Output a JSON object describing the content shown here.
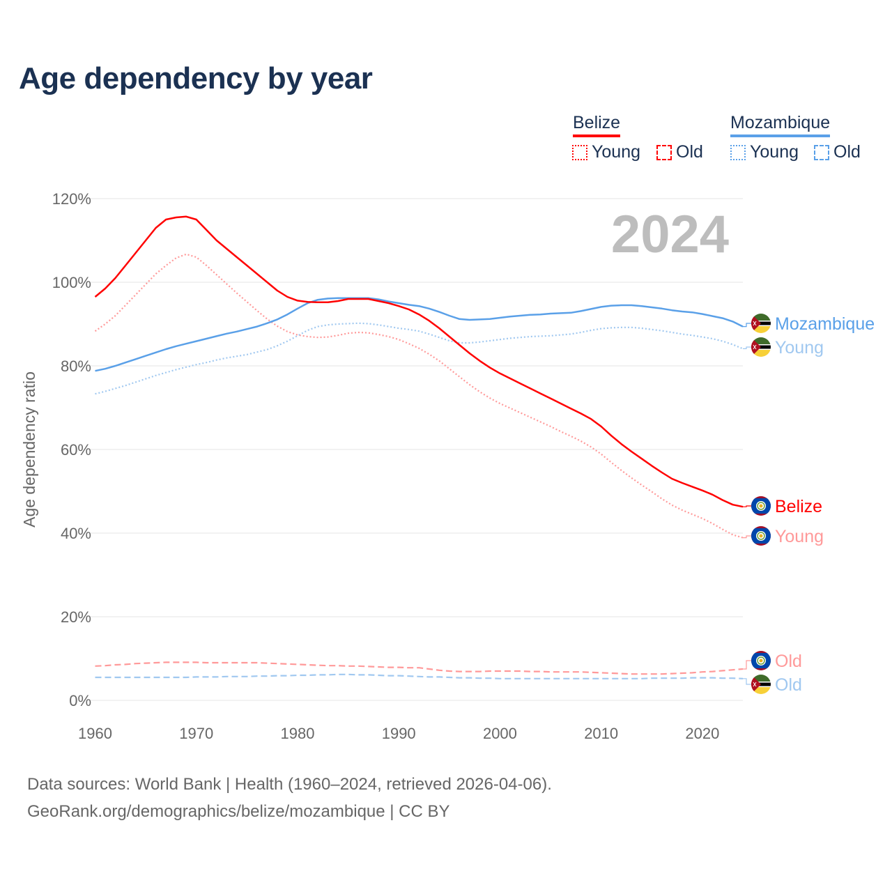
{
  "title": "Age dependency by year",
  "legend": {
    "groups": [
      {
        "name": "Belize",
        "color": "#ff0000",
        "light": "#ff9999",
        "items": [
          "Young",
          "Old"
        ]
      },
      {
        "name": "Mozambique",
        "color": "#5aa0e8",
        "light": "#a0c8f0",
        "items": [
          "Young",
          "Old"
        ]
      }
    ]
  },
  "footer": {
    "line1": "Data sources: World Bank | Health (1960–2024, retrieved 2026-04-06).",
    "line2": "GeoRank.org/demographics/belize/mozambique | CC BY"
  },
  "chart_data": {
    "type": "line",
    "title": "Age dependency by year",
    "year_label": "2024",
    "xlabel": "",
    "ylabel": "Age dependency ratio",
    "xlim": [
      1960,
      2024
    ],
    "ylim": [
      0,
      120
    ],
    "x_ticks": [
      "1960",
      "1970",
      "1980",
      "1990",
      "2000",
      "2010",
      "2020"
    ],
    "y_ticks": [
      "0%",
      "20%",
      "40%",
      "60%",
      "80%",
      "100%",
      "120%"
    ],
    "grid": true,
    "x_start": 1960,
    "series": [
      {
        "name": "Belize",
        "label": "Belize",
        "country": "Belize",
        "style": "solid",
        "color": "#ff0000",
        "values": [
          96.5,
          98.5,
          101,
          104,
          107,
          110,
          113,
          115,
          115.5,
          115.7,
          115,
          112.5,
          110,
          108,
          106,
          104,
          102,
          100,
          98,
          96.5,
          95.6,
          95.3,
          95.2,
          95.2,
          95.5,
          96,
          96,
          96,
          95.5,
          95,
          94.3,
          93.5,
          92.3,
          90.8,
          89,
          87,
          85,
          83,
          81.2,
          79.6,
          78.2,
          77,
          75.8,
          74.6,
          73.4,
          72.2,
          71,
          69.8,
          68.6,
          67.3,
          65.5,
          63.3,
          61.3,
          59.5,
          57.8,
          56.1,
          54.5,
          53,
          52,
          51.1,
          50.2,
          49.2,
          47.9,
          46.8,
          46.3
        ]
      },
      {
        "name": "Belize Young",
        "label": "Young",
        "country": "Belize",
        "style": "dotted",
        "color": "#ff9999",
        "values": [
          88.3,
          90,
          92,
          94.5,
          97,
          99.5,
          102,
          104,
          105.8,
          106.7,
          106,
          104,
          101.8,
          99.6,
          97.4,
          95.3,
          93.2,
          91.2,
          89.5,
          88.2,
          87.4,
          87,
          86.8,
          86.9,
          87.3,
          87.8,
          88,
          87.9,
          87.5,
          87,
          86.3,
          85.3,
          84.2,
          82.8,
          81.2,
          79.3,
          77.4,
          75.5,
          73.8,
          72.3,
          71,
          69.9,
          68.8,
          67.7,
          66.6,
          65.5,
          64.3,
          63.2,
          62,
          60.6,
          58.9,
          56.9,
          55,
          53.2,
          51.5,
          49.9,
          48.2,
          46.7,
          45.5,
          44.5,
          43.5,
          42.3,
          40.9,
          39.6,
          38.9
        ]
      },
      {
        "name": "Belize Old",
        "label": "Old",
        "country": "Belize",
        "style": "dashed",
        "color": "#ff9999",
        "values": [
          8.2,
          8.3,
          8.5,
          8.6,
          8.8,
          8.9,
          9.0,
          9.1,
          9.1,
          9.1,
          9.1,
          9.0,
          9.0,
          9.0,
          9.0,
          9.0,
          9.0,
          8.9,
          8.8,
          8.7,
          8.6,
          8.5,
          8.4,
          8.3,
          8.3,
          8.2,
          8.2,
          8.1,
          8.0,
          7.9,
          7.9,
          7.8,
          7.8,
          7.5,
          7.2,
          7.0,
          6.9,
          6.9,
          6.9,
          7.0,
          7.0,
          7.0,
          7.0,
          6.9,
          6.9,
          6.8,
          6.8,
          6.8,
          6.8,
          6.7,
          6.6,
          6.5,
          6.4,
          6.3,
          6.3,
          6.3,
          6.3,
          6.4,
          6.5,
          6.6,
          6.8,
          6.9,
          7.1,
          7.3,
          7.5
        ]
      },
      {
        "name": "Mozambique",
        "label": "Mozambique",
        "country": "Mozambique",
        "style": "solid",
        "color": "#5aa0e8",
        "values": [
          78.8,
          79.3,
          80,
          80.8,
          81.6,
          82.4,
          83.2,
          84,
          84.7,
          85.3,
          85.9,
          86.5,
          87.1,
          87.7,
          88.2,
          88.8,
          89.4,
          90.2,
          91.1,
          92.3,
          93.7,
          95,
          95.8,
          96.1,
          96.2,
          96.2,
          96.2,
          96.2,
          95.9,
          95.4,
          95,
          94.6,
          94.3,
          93.7,
          92.9,
          92,
          91.2,
          91,
          91.1,
          91.2,
          91.5,
          91.8,
          92,
          92.2,
          92.3,
          92.5,
          92.6,
          92.7,
          93.1,
          93.6,
          94.1,
          94.4,
          94.5,
          94.5,
          94.3,
          94,
          93.7,
          93.3,
          93,
          92.8,
          92.4,
          91.9,
          91.4,
          90.6,
          89.4
        ]
      },
      {
        "name": "Mozambique Young",
        "label": "Young",
        "country": "Mozambique",
        "style": "dotted",
        "color": "#a0c8f0",
        "values": [
          73.3,
          73.9,
          74.6,
          75.3,
          76.1,
          76.9,
          77.7,
          78.4,
          79.1,
          79.7,
          80.3,
          80.8,
          81.4,
          81.9,
          82.3,
          82.7,
          83.3,
          83.9,
          84.8,
          85.9,
          87.2,
          88.5,
          89.4,
          89.8,
          90,
          90.1,
          90.2,
          90.1,
          89.8,
          89.4,
          89,
          88.7,
          88.3,
          87.6,
          86.8,
          86,
          85.5,
          85.5,
          85.7,
          86,
          86.3,
          86.6,
          86.8,
          87,
          87.1,
          87.2,
          87.4,
          87.6,
          88,
          88.5,
          88.9,
          89.1,
          89.2,
          89.2,
          89,
          88.7,
          88.4,
          88,
          87.6,
          87.3,
          86.9,
          86.5,
          85.9,
          85.1,
          84.1
        ]
      },
      {
        "name": "Mozambique Old",
        "label": "Old",
        "country": "Mozambique",
        "style": "dashed",
        "color": "#a0c8f0",
        "values": [
          5.5,
          5.5,
          5.5,
          5.5,
          5.5,
          5.5,
          5.5,
          5.5,
          5.5,
          5.5,
          5.6,
          5.6,
          5.6,
          5.7,
          5.7,
          5.7,
          5.8,
          5.8,
          5.9,
          5.9,
          6.0,
          6.0,
          6.1,
          6.1,
          6.2,
          6.2,
          6.1,
          6.1,
          6.0,
          5.9,
          5.9,
          5.8,
          5.7,
          5.6,
          5.6,
          5.5,
          5.4,
          5.4,
          5.3,
          5.3,
          5.2,
          5.2,
          5.2,
          5.2,
          5.2,
          5.2,
          5.2,
          5.2,
          5.2,
          5.2,
          5.2,
          5.2,
          5.2,
          5.2,
          5.2,
          5.3,
          5.3,
          5.3,
          5.3,
          5.4,
          5.4,
          5.4,
          5.3,
          5.3,
          5.2
        ]
      }
    ]
  }
}
